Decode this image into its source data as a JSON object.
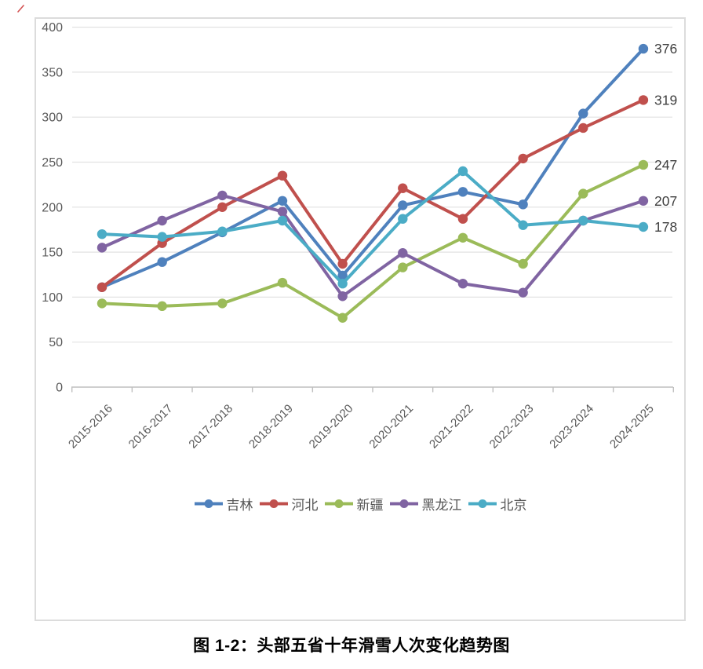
{
  "page": {
    "figure_caption": "图 1-2：头部五省十年滑雪人次变化趋势图"
  },
  "chart_data": {
    "type": "line",
    "title": "头部五省十年滑雪人次变化趋势图",
    "xlabel": "",
    "ylabel": "",
    "categories": [
      "2015-2016",
      "2016-2017",
      "2017-2018",
      "2018-2019",
      "2019-2020",
      "2020-2021",
      "2021-2022",
      "2022-2023",
      "2023-2024",
      "2024-2025"
    ],
    "series": [
      {
        "name": "吉林",
        "color": "#4F81BD",
        "values": [
          111,
          139,
          172,
          207,
          124,
          202,
          217,
          203,
          304,
          376
        ],
        "end_label": "376"
      },
      {
        "name": "河北",
        "color": "#C0504D",
        "values": [
          111,
          160,
          200,
          235,
          137,
          221,
          187,
          254,
          288,
          319
        ],
        "end_label": "319"
      },
      {
        "name": "新疆",
        "color": "#9BBB59",
        "values": [
          93,
          90,
          93,
          116,
          77,
          133,
          166,
          137,
          215,
          247
        ],
        "end_label": "247"
      },
      {
        "name": "黑龙江",
        "color": "#8064A2",
        "values": [
          155,
          185,
          213,
          195,
          101,
          149,
          115,
          105,
          185,
          207
        ],
        "end_label": "207"
      },
      {
        "name": "北京",
        "color": "#4BACC6",
        "values": [
          170,
          167,
          173,
          185,
          115,
          187,
          240,
          180,
          185,
          178
        ],
        "end_label": "178"
      }
    ],
    "ylim": [
      0,
      400
    ],
    "yticks": [
      0,
      50,
      100,
      150,
      200,
      250,
      300,
      350,
      400
    ],
    "grid": true,
    "legend_position": "bottom"
  },
  "colors": {
    "grid": "#e2e2e2",
    "axis": "#bfbfbf",
    "tick_label": "#595959",
    "data_label": "#3f3f3f",
    "box_border": "#dcdcdc",
    "artifact": "#cc3333"
  }
}
